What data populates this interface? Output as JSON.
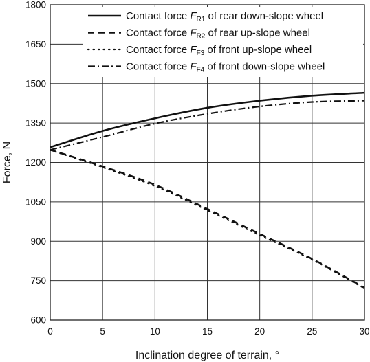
{
  "chart_data": {
    "type": "line",
    "xlabel": "Inclination degree of terrain, °",
    "ylabel": "Force, N",
    "xlim": [
      0,
      30
    ],
    "ylim": [
      600,
      1800
    ],
    "xticks": [
      0,
      5,
      10,
      15,
      20,
      25,
      30
    ],
    "yticks": [
      600,
      750,
      900,
      1050,
      1200,
      1350,
      1500,
      1650,
      1800
    ],
    "grid": true,
    "legend_position": "top-right",
    "x": [
      0,
      5,
      10,
      15,
      20,
      25,
      30
    ],
    "series": [
      {
        "legend_text": "Contact force ",
        "symbol": "F",
        "subscript": "R1",
        "legend_suffix": " of rear down-slope wheel",
        "line_style": "solid",
        "values": [
          1258,
          1320,
          1368,
          1408,
          1435,
          1454,
          1465
        ]
      },
      {
        "legend_text": "Contact force ",
        "symbol": "F",
        "subscript": "R2",
        "legend_suffix": " of rear up-slope wheel",
        "line_style": "dashed",
        "values": [
          1248,
          1185,
          1115,
          1023,
          928,
          833,
          723
        ]
      },
      {
        "legend_text": "Contact force ",
        "symbol": "F",
        "subscript": "F3",
        "legend_suffix": " of front up-slope wheel",
        "line_style": "dotted",
        "values": [
          1247,
          1182,
          1110,
          1018,
          923,
          830,
          721
        ]
      },
      {
        "legend_text": "Contact force ",
        "symbol": "F",
        "subscript": "F4",
        "legend_suffix": " of front down-slope wheel",
        "line_style": "dashdot",
        "values": [
          1248,
          1297,
          1348,
          1385,
          1413,
          1430,
          1435
        ]
      }
    ]
  }
}
